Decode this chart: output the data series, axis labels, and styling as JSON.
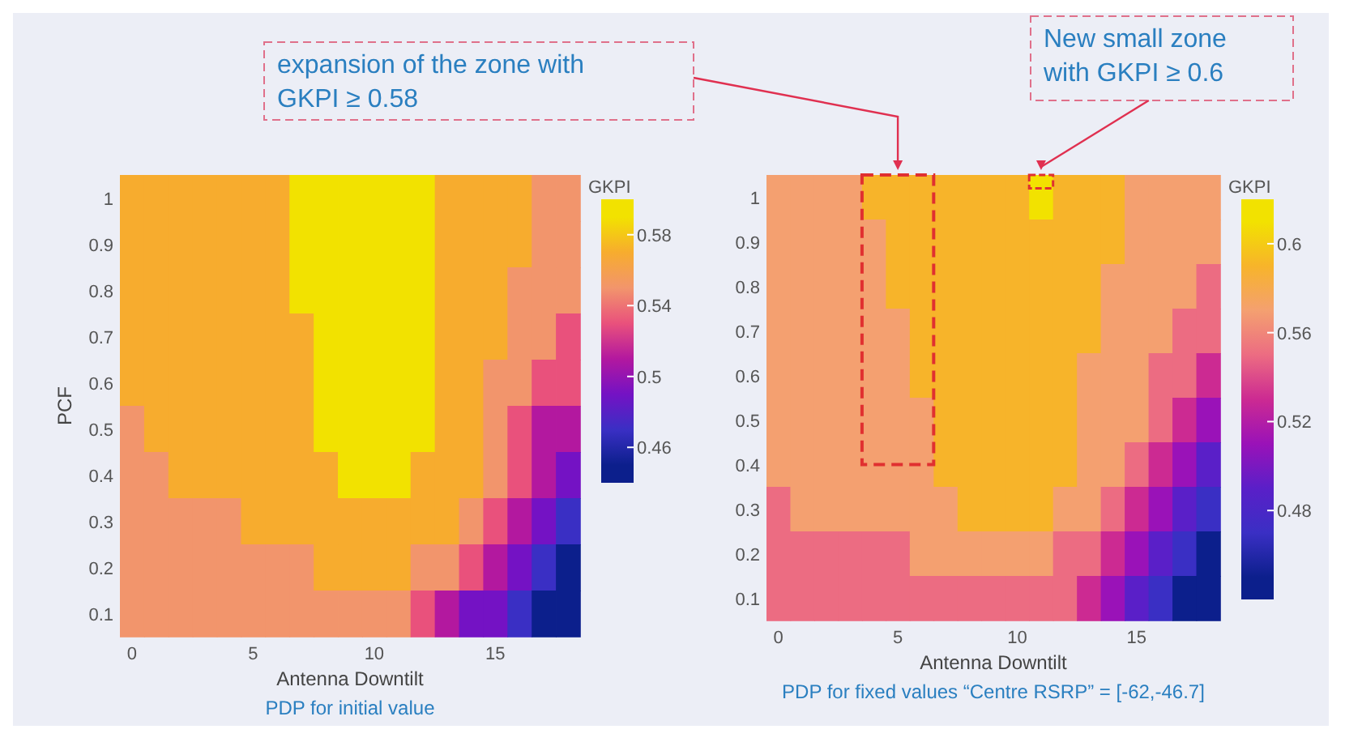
{
  "chart_data": [
    {
      "type": "heatmap",
      "title": "PDP for initial value",
      "xlabel": "Antenna Downtilt",
      "ylabel": "PCF",
      "clabel": "GKPI",
      "categories": [
        "0",
        null,
        null,
        null,
        null,
        "5",
        null,
        null,
        null,
        null,
        "10",
        null,
        null,
        null,
        null,
        "15",
        null,
        null,
        null
      ],
      "y_categories": [
        "1",
        "0.9",
        "0.8",
        "0.7",
        "0.6",
        "0.5",
        "0.4",
        "0.3",
        "0.2",
        "0.1"
      ],
      "clim": [
        0.44,
        0.6
      ],
      "cticks": [
        0.46,
        0.5,
        0.54,
        0.58
      ],
      "colors": [
        "#0c1f8c",
        "#3a2fc4",
        "#7412c4",
        "#b3189f",
        "#e9517c",
        "#f2956c",
        "#f7ac2e",
        "#f2e200"
      ],
      "cells": [
        [
          0.57,
          0.57,
          0.57,
          0.57,
          0.57,
          0.57,
          0.57,
          0.59,
          0.59,
          0.59,
          0.59,
          0.59,
          0.59,
          0.57,
          0.57,
          0.57,
          0.57,
          0.55,
          0.55
        ],
        [
          0.57,
          0.57,
          0.57,
          0.57,
          0.57,
          0.57,
          0.57,
          0.59,
          0.59,
          0.59,
          0.59,
          0.59,
          0.59,
          0.57,
          0.57,
          0.57,
          0.57,
          0.55,
          0.55
        ],
        [
          0.57,
          0.57,
          0.57,
          0.57,
          0.57,
          0.57,
          0.57,
          0.59,
          0.59,
          0.59,
          0.59,
          0.59,
          0.59,
          0.57,
          0.57,
          0.57,
          0.55,
          0.55,
          0.55
        ],
        [
          0.57,
          0.57,
          0.57,
          0.57,
          0.57,
          0.57,
          0.57,
          0.57,
          0.59,
          0.59,
          0.59,
          0.59,
          0.59,
          0.57,
          0.57,
          0.57,
          0.55,
          0.55,
          0.53
        ],
        [
          0.57,
          0.57,
          0.57,
          0.57,
          0.57,
          0.57,
          0.57,
          0.57,
          0.59,
          0.59,
          0.59,
          0.59,
          0.59,
          0.57,
          0.57,
          0.55,
          0.55,
          0.53,
          0.53
        ],
        [
          0.55,
          0.57,
          0.57,
          0.57,
          0.57,
          0.57,
          0.57,
          0.57,
          0.59,
          0.59,
          0.59,
          0.59,
          0.59,
          0.57,
          0.57,
          0.55,
          0.53,
          0.51,
          0.51
        ],
        [
          0.55,
          0.55,
          0.57,
          0.57,
          0.57,
          0.57,
          0.57,
          0.57,
          0.57,
          0.59,
          0.59,
          0.59,
          0.57,
          0.57,
          0.57,
          0.55,
          0.53,
          0.51,
          0.49
        ],
        [
          0.55,
          0.55,
          0.55,
          0.55,
          0.55,
          0.57,
          0.57,
          0.57,
          0.57,
          0.57,
          0.57,
          0.57,
          0.57,
          0.57,
          0.55,
          0.53,
          0.51,
          0.49,
          0.47
        ],
        [
          0.55,
          0.55,
          0.55,
          0.55,
          0.55,
          0.55,
          0.55,
          0.55,
          0.57,
          0.57,
          0.57,
          0.57,
          0.55,
          0.55,
          0.53,
          0.51,
          0.49,
          0.47,
          0.45
        ],
        [
          0.55,
          0.55,
          0.55,
          0.55,
          0.55,
          0.55,
          0.55,
          0.55,
          0.55,
          0.55,
          0.55,
          0.55,
          0.53,
          0.51,
          0.49,
          0.49,
          0.47,
          0.45,
          0.45
        ]
      ]
    },
    {
      "type": "heatmap",
      "title": "PDP for fixed values “Centre RSRP” = [-62,-46.7]",
      "xlabel": "Antenna Downtilt",
      "clabel": "GKPI",
      "categories": [
        "0",
        null,
        null,
        null,
        null,
        "5",
        null,
        null,
        null,
        null,
        "10",
        null,
        null,
        null,
        null,
        "15",
        null,
        null,
        null
      ],
      "y_categories": [
        "1",
        "0.9",
        "0.8",
        "0.7",
        "0.6",
        "0.5",
        "0.4",
        "0.3",
        "0.2",
        "0.1"
      ],
      "clim": [
        0.44,
        0.62
      ],
      "cticks": [
        0.48,
        0.52,
        0.56,
        0.6
      ],
      "colors": [
        "#0c1f8c",
        "#3a2fc4",
        "#5a1fc8",
        "#9a12b8",
        "#cc2a92",
        "#ec6c82",
        "#f4a070",
        "#f7b42a",
        "#f2e200"
      ],
      "cells": [
        [
          0.57,
          0.57,
          0.57,
          0.57,
          0.59,
          0.59,
          0.59,
          0.59,
          0.59,
          0.59,
          0.59,
          0.61,
          0.59,
          0.59,
          0.59,
          0.57,
          0.57,
          0.57,
          0.57
        ],
        [
          0.57,
          0.57,
          0.57,
          0.57,
          0.57,
          0.59,
          0.59,
          0.59,
          0.59,
          0.59,
          0.59,
          0.59,
          0.59,
          0.59,
          0.59,
          0.57,
          0.57,
          0.57,
          0.57
        ],
        [
          0.57,
          0.57,
          0.57,
          0.57,
          0.57,
          0.59,
          0.59,
          0.59,
          0.59,
          0.59,
          0.59,
          0.59,
          0.59,
          0.59,
          0.57,
          0.57,
          0.57,
          0.57,
          0.55
        ],
        [
          0.57,
          0.57,
          0.57,
          0.57,
          0.57,
          0.57,
          0.59,
          0.59,
          0.59,
          0.59,
          0.59,
          0.59,
          0.59,
          0.59,
          0.57,
          0.57,
          0.57,
          0.55,
          0.55
        ],
        [
          0.57,
          0.57,
          0.57,
          0.57,
          0.57,
          0.57,
          0.59,
          0.59,
          0.59,
          0.59,
          0.59,
          0.59,
          0.59,
          0.57,
          0.57,
          0.57,
          0.55,
          0.55,
          0.53
        ],
        [
          0.57,
          0.57,
          0.57,
          0.57,
          0.57,
          0.57,
          0.57,
          0.59,
          0.59,
          0.59,
          0.59,
          0.59,
          0.59,
          0.57,
          0.57,
          0.57,
          0.55,
          0.53,
          0.51
        ],
        [
          0.57,
          0.57,
          0.57,
          0.57,
          0.57,
          0.57,
          0.57,
          0.59,
          0.59,
          0.59,
          0.59,
          0.59,
          0.59,
          0.57,
          0.57,
          0.55,
          0.53,
          0.51,
          0.49
        ],
        [
          0.55,
          0.57,
          0.57,
          0.57,
          0.57,
          0.57,
          0.57,
          0.57,
          0.59,
          0.59,
          0.59,
          0.59,
          0.57,
          0.57,
          0.55,
          0.53,
          0.51,
          0.49,
          0.47
        ],
        [
          0.55,
          0.55,
          0.55,
          0.55,
          0.55,
          0.55,
          0.57,
          0.57,
          0.57,
          0.57,
          0.57,
          0.57,
          0.55,
          0.55,
          0.53,
          0.51,
          0.49,
          0.47,
          0.45
        ],
        [
          0.55,
          0.55,
          0.55,
          0.55,
          0.55,
          0.55,
          0.55,
          0.55,
          0.55,
          0.55,
          0.55,
          0.55,
          0.55,
          0.53,
          0.51,
          0.49,
          0.47,
          0.45,
          0.45
        ]
      ],
      "annotations": [
        "expansion of the zone with\nGKPI ≥ 0.58",
        "New small zone\nwith GKPI ≥ 0.6"
      ]
    }
  ]
}
